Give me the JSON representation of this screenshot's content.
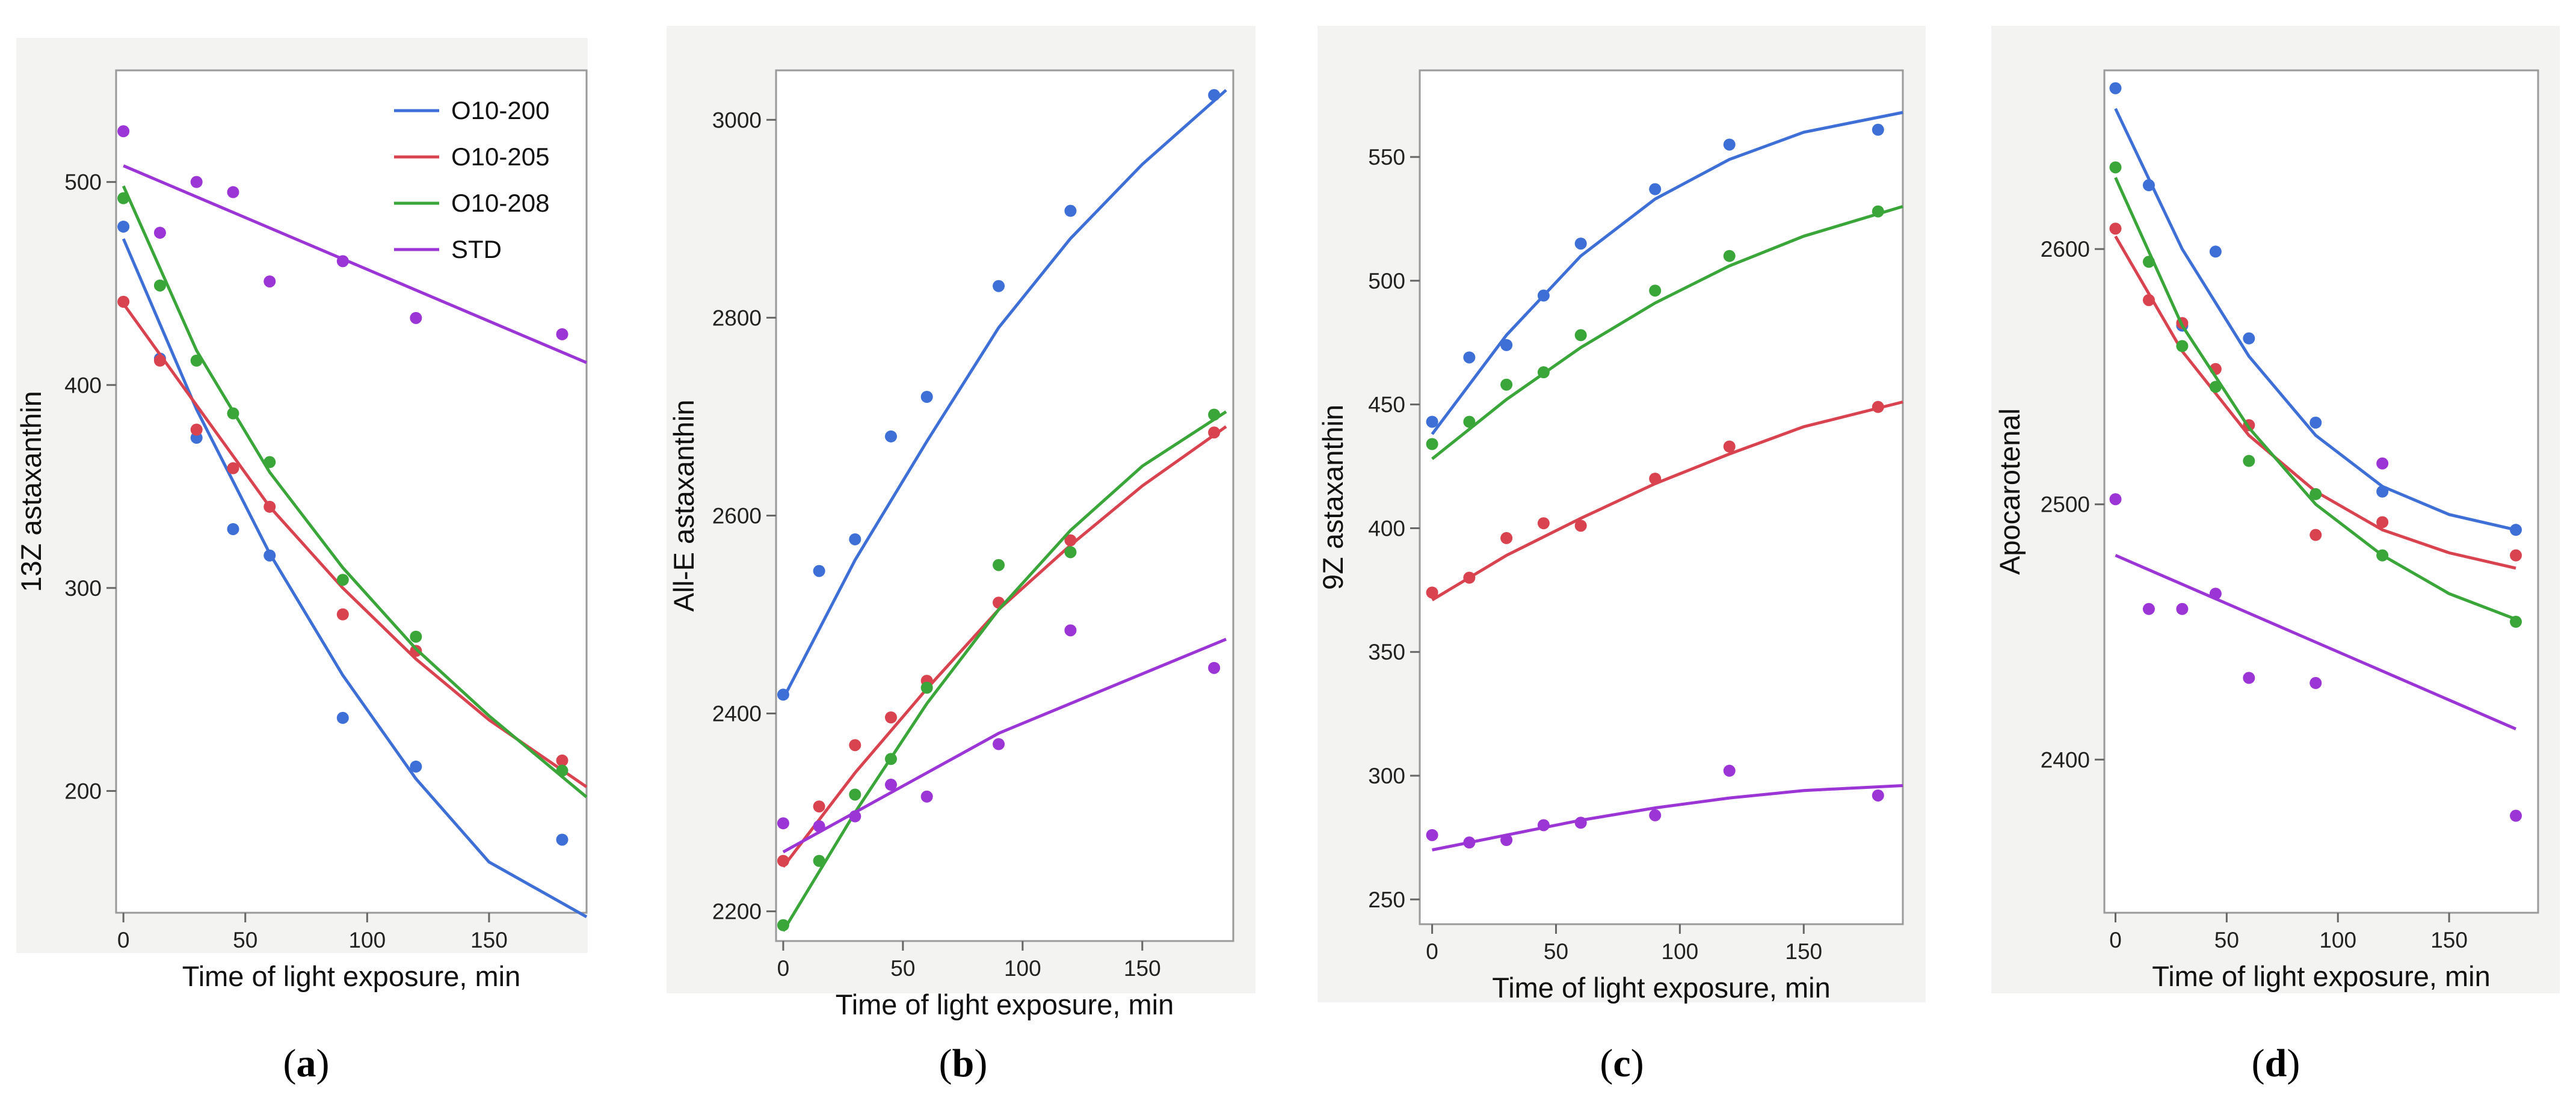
{
  "chart_data": [
    {
      "type": "scatter",
      "caption": "a",
      "xlabel": "Time of light exposure, min",
      "ylabel": "13Z astaxanthin",
      "xlim": [
        -3,
        190
      ],
      "ylim": [
        140,
        555
      ],
      "xticks": [
        0,
        50,
        100,
        150
      ],
      "yticks": [
        200,
        300,
        400,
        500
      ],
      "legend": {
        "position": "top-right",
        "entries": [
          "O10-200",
          "O10-205",
          "O10-208",
          "STD"
        ]
      },
      "x": [
        0,
        15,
        30,
        45,
        60,
        90,
        120,
        180
      ],
      "series": [
        {
          "name": "O10-200",
          "color": "#3d6fd6",
          "points": [
            478,
            413,
            374,
            329,
            316,
            236,
            212,
            176
          ],
          "fit": [
            [
              0,
              472
            ],
            [
              30,
              388
            ],
            [
              60,
              317
            ],
            [
              90,
              257
            ],
            [
              120,
              206
            ],
            [
              150,
              165
            ],
            [
              190,
              138
            ]
          ]
        },
        {
          "name": "O10-205",
          "color": "#d9434f",
          "points": [
            441,
            412,
            378,
            359,
            340,
            287,
            269,
            215
          ],
          "fit": [
            [
              0,
              440
            ],
            [
              30,
              390
            ],
            [
              60,
              340
            ],
            [
              90,
              300
            ],
            [
              120,
              265
            ],
            [
              150,
              235
            ],
            [
              190,
              202
            ]
          ]
        },
        {
          "name": "O10-208",
          "color": "#3aa63a",
          "points": [
            492,
            449,
            412,
            386,
            362,
            304,
            276,
            210
          ],
          "fit": [
            [
              0,
              498
            ],
            [
              30,
              417
            ],
            [
              60,
              357
            ],
            [
              90,
              310
            ],
            [
              120,
              270
            ],
            [
              150,
              237
            ],
            [
              190,
              197
            ]
          ]
        },
        {
          "name": "STD",
          "color": "#9b35d6",
          "points": [
            525,
            475,
            500,
            495,
            451,
            461,
            433,
            425
          ],
          "fit": [
            [
              0,
              508
            ],
            [
              190,
              411
            ]
          ]
        }
      ]
    },
    {
      "type": "scatter",
      "caption": "b",
      "xlabel": "Time of light exposure, min",
      "ylabel": "All-E astaxanthin",
      "xlim": [
        -3,
        188
      ],
      "ylim": [
        2170,
        3050
      ],
      "xticks": [
        0,
        50,
        100,
        150
      ],
      "yticks": [
        2200,
        2400,
        2600,
        2800,
        3000
      ],
      "x": [
        0,
        15,
        30,
        45,
        60,
        90,
        120,
        180
      ],
      "series": [
        {
          "name": "O10-200",
          "color": "#3d6fd6",
          "points": [
            2419,
            2544,
            2576,
            2680,
            2720,
            2832,
            2908,
            3025
          ],
          "fit": [
            [
              0,
              2415
            ],
            [
              30,
              2555
            ],
            [
              60,
              2675
            ],
            [
              90,
              2790
            ],
            [
              120,
              2880
            ],
            [
              150,
              2955
            ],
            [
              185,
              3030
            ]
          ]
        },
        {
          "name": "O10-205",
          "color": "#d9434f",
          "points": [
            2251,
            2306,
            2368,
            2396,
            2433,
            2512,
            2575,
            2684
          ],
          "fit": [
            [
              0,
              2245
            ],
            [
              30,
              2340
            ],
            [
              60,
              2425
            ],
            [
              90,
              2505
            ],
            [
              120,
              2570
            ],
            [
              150,
              2630
            ],
            [
              185,
              2690
            ]
          ]
        },
        {
          "name": "O10-208",
          "color": "#3aa63a",
          "points": [
            2186,
            2251,
            2318,
            2354,
            2426,
            2550,
            2563,
            2702
          ],
          "fit": [
            [
              0,
              2180
            ],
            [
              30,
              2300
            ],
            [
              60,
              2410
            ],
            [
              90,
              2505
            ],
            [
              120,
              2585
            ],
            [
              150,
              2650
            ],
            [
              185,
              2705
            ]
          ]
        },
        {
          "name": "STD",
          "color": "#9b35d6",
          "points": [
            2289,
            2286,
            2296,
            2328,
            2316,
            2369,
            2484,
            2446
          ],
          "fit": [
            [
              0,
              2260
            ],
            [
              30,
              2300
            ],
            [
              60,
              2340
            ],
            [
              90,
              2380
            ],
            [
              120,
              2410
            ],
            [
              150,
              2440
            ],
            [
              185,
              2475
            ]
          ]
        }
      ]
    },
    {
      "type": "scatter",
      "caption": "c",
      "xlabel": "Time of light exposure, min",
      "ylabel": "9Z astaxanthin",
      "xlim": [
        -5,
        190
      ],
      "ylim": [
        240,
        585
      ],
      "xticks": [
        0,
        50,
        100,
        150
      ],
      "yticks": [
        250,
        300,
        350,
        400,
        450,
        500,
        550
      ],
      "x": [
        0,
        15,
        30,
        45,
        60,
        90,
        120,
        180
      ],
      "series": [
        {
          "name": "O10-200",
          "color": "#3d6fd6",
          "points": [
            443,
            469,
            474,
            494,
            515,
            537,
            555,
            561
          ],
          "fit": [
            [
              0,
              438
            ],
            [
              30,
              478
            ],
            [
              60,
              510
            ],
            [
              90,
              533
            ],
            [
              120,
              549
            ],
            [
              150,
              560
            ],
            [
              190,
              568
            ]
          ]
        },
        {
          "name": "O10-205",
          "color": "#d9434f",
          "points": [
            374,
            380,
            396,
            402,
            401,
            420,
            433,
            449
          ],
          "fit": [
            [
              0,
              371
            ],
            [
              30,
              389
            ],
            [
              60,
              404
            ],
            [
              90,
              418
            ],
            [
              120,
              430
            ],
            [
              150,
              441
            ],
            [
              190,
              451
            ]
          ]
        },
        {
          "name": "O10-208",
          "color": "#3aa63a",
          "points": [
            434,
            443,
            458,
            463,
            478,
            496,
            510,
            528
          ],
          "fit": [
            [
              0,
              428
            ],
            [
              30,
              452
            ],
            [
              60,
              473
            ],
            [
              90,
              491
            ],
            [
              120,
              506
            ],
            [
              150,
              518
            ],
            [
              190,
              530
            ]
          ]
        },
        {
          "name": "STD",
          "color": "#9b35d6",
          "points": [
            276,
            273,
            274,
            280,
            281,
            284,
            302,
            292
          ],
          "fit": [
            [
              0,
              270
            ],
            [
              30,
              276
            ],
            [
              60,
              282
            ],
            [
              90,
              287
            ],
            [
              120,
              291
            ],
            [
              150,
              294
            ],
            [
              190,
              296
            ]
          ]
        }
      ]
    },
    {
      "type": "scatter",
      "caption": "d",
      "xlabel": "Time of light exposure, min",
      "ylabel": "Apocarotenal",
      "xlim": [
        -5,
        190
      ],
      "ylim": [
        2340,
        2670
      ],
      "xticks": [
        0,
        50,
        100,
        150
      ],
      "yticks": [
        2400,
        2500,
        2600
      ],
      "x": [
        0,
        15,
        30,
        45,
        60,
        90,
        120,
        180
      ],
      "series": [
        {
          "name": "O10-200",
          "color": "#3d6fd6",
          "points": [
            2663,
            2625,
            2570,
            2599,
            2565,
            2532,
            2505,
            2490
          ],
          "fit": [
            [
              0,
              2655
            ],
            [
              30,
              2600
            ],
            [
              60,
              2558
            ],
            [
              90,
              2527
            ],
            [
              120,
              2507
            ],
            [
              150,
              2496
            ],
            [
              180,
              2490
            ]
          ]
        },
        {
          "name": "O10-205",
          "color": "#d9434f",
          "points": [
            2608,
            2580,
            2571,
            2553,
            2531,
            2488,
            2493,
            2480
          ],
          "fit": [
            [
              0,
              2605
            ],
            [
              30,
              2560
            ],
            [
              60,
              2527
            ],
            [
              90,
              2505
            ],
            [
              120,
              2490
            ],
            [
              150,
              2481
            ],
            [
              180,
              2475
            ]
          ]
        },
        {
          "name": "O10-208",
          "color": "#3aa63a",
          "points": [
            2632,
            2595,
            2562,
            2546,
            2517,
            2504,
            2480,
            2454
          ],
          "fit": [
            [
              0,
              2628
            ],
            [
              30,
              2570
            ],
            [
              60,
              2530
            ],
            [
              90,
              2500
            ],
            [
              120,
              2480
            ],
            [
              150,
              2465
            ],
            [
              180,
              2455
            ]
          ]
        },
        {
          "name": "STD",
          "color": "#9b35d6",
          "points": [
            2502,
            2459,
            2459,
            2465,
            2432,
            2430,
            2516,
            2378
          ],
          "fit": [
            [
              0,
              2480
            ],
            [
              180,
              2412
            ]
          ]
        }
      ]
    }
  ]
}
